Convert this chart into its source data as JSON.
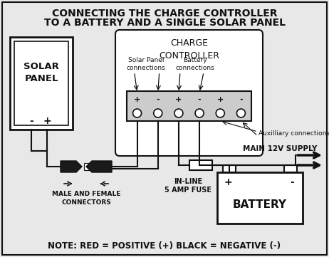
{
  "title_line1": "CONNECTING THE CHARGE CONTROLLER",
  "title_line2": "TO A BATTERY AND A SINGLE SOLAR PANEL",
  "note": "NOTE: RED = POSITIVE (+) BLACK = NEGATIVE (-)",
  "solar_panel_label": "SOLAR\nPANEL",
  "charge_controller_label": "CHARGE\nCONTROLLER",
  "solar_connections_label": "Solar Panel\nconnections",
  "battery_connections_label": "Battery\nconnections",
  "aux_connections_label": "Auxilliary connections",
  "main_supply_label": "MAIN 12V SUPPLY",
  "inline_fuse_label": "IN-LINE\n5 AMP FUSE",
  "battery_label": "BATTERY",
  "connectors_label": "MALE AND FEMALE\nCONNECTORS",
  "bg_color": "#e8e8e8",
  "border_color": "#111111",
  "line_color": "#111111",
  "text_color": "#111111",
  "white": "#ffffff",
  "dark": "#222222"
}
